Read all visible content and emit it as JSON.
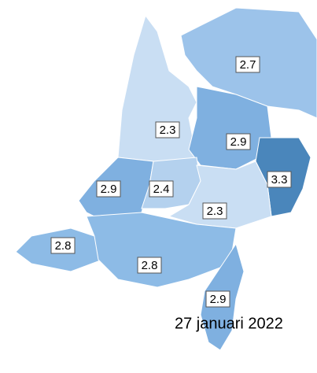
{
  "date": "27 januari 2022",
  "regions": [
    {
      "value": 2.7,
      "color": "#9cc3ea"
    },
    {
      "value": 2.3,
      "color": "#c9def3"
    },
    {
      "value": 2.9,
      "color": "#7fb0e0"
    },
    {
      "value": 3.3,
      "color": "#4a86bb"
    },
    {
      "value": 2.9,
      "color": "#7fb0e0"
    },
    {
      "value": 2.4,
      "color": "#b4d1ee"
    },
    {
      "value": 2.3,
      "color": "#c9def3"
    },
    {
      "value": 2.8,
      "color": "#8dbbe6"
    },
    {
      "value": 2.8,
      "color": "#8dbbe6"
    },
    {
      "value": 2.9,
      "color": "#7fb0e0"
    }
  ]
}
